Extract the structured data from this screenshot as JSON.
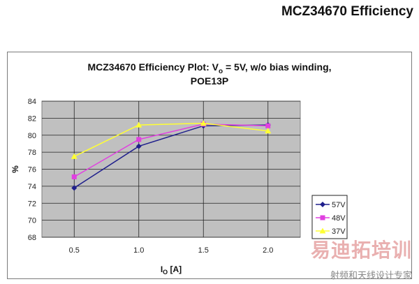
{
  "page": {
    "heading": "MCZ34670 Efficiency"
  },
  "chart_data": {
    "type": "line",
    "title_line1_prefix": "MCZ34670 Efficiency Plot: V",
    "title_line1_sub": "o",
    "title_line1_suffix": " = 5V, w/o bias winding,",
    "title_line2": "POE13P",
    "ylabel": "%",
    "xlabel_main": "I",
    "xlabel_sub": "O",
    "xlabel_unit": " [A]",
    "x_ticks": [
      "0.5",
      "1.0",
      "1.5",
      "2.0"
    ],
    "x": [
      0.5,
      1.0,
      1.5,
      2.0
    ],
    "xlim": [
      0.25,
      2.25
    ],
    "ylim": [
      68,
      84
    ],
    "y_ticks": [
      "68",
      "70",
      "72",
      "74",
      "76",
      "78",
      "80",
      "82",
      "84"
    ],
    "grid": true,
    "legend_position": "right",
    "series": [
      {
        "name": "57V",
        "values": [
          73.8,
          78.7,
          81.1,
          81.2
        ],
        "color": "#1f1f8c",
        "marker": "diamond"
      },
      {
        "name": "48V",
        "values": [
          75.1,
          79.5,
          81.3,
          81.1
        ],
        "color": "#e040e0",
        "marker": "square"
      },
      {
        "name": "37V",
        "values": [
          77.5,
          81.2,
          81.4,
          80.5
        ],
        "color": "#ffff33",
        "marker": "triangle"
      }
    ]
  },
  "watermark": {
    "logo_text": "易迪拓培训",
    "sub_text": "射频和天线设计专家"
  }
}
